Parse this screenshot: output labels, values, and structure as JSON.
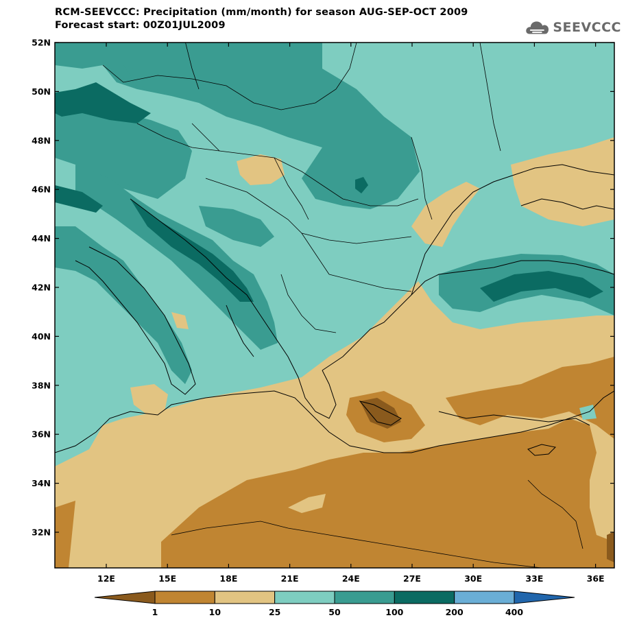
{
  "title_line1": "RCM-SEEVCCC: Precipitation (mm/month) for season AUG-SEP-OCT 2009",
  "title_line2": "Forecast start: 00Z01JUL2009",
  "logo": {
    "text": "SEEVCCC",
    "icon": "cloud-icon"
  },
  "map": {
    "lat_labels": [
      "52N",
      "50N",
      "48N",
      "46N",
      "44N",
      "42N",
      "40N",
      "38N",
      "36N",
      "34N",
      "32N"
    ],
    "lon_labels": [
      "12E",
      "15E",
      "18E",
      "21E",
      "24E",
      "27E",
      "30E",
      "33E",
      "36E"
    ]
  },
  "colorbar": {
    "levels": [
      "1",
      "10",
      "25",
      "50",
      "100",
      "200",
      "400"
    ],
    "colors": [
      "#8a5a1d",
      "#c08532",
      "#e2c482",
      "#7ecdc0",
      "#3a9c91",
      "#0b6b62",
      "#6aaed6",
      "#2166ac"
    ]
  }
}
